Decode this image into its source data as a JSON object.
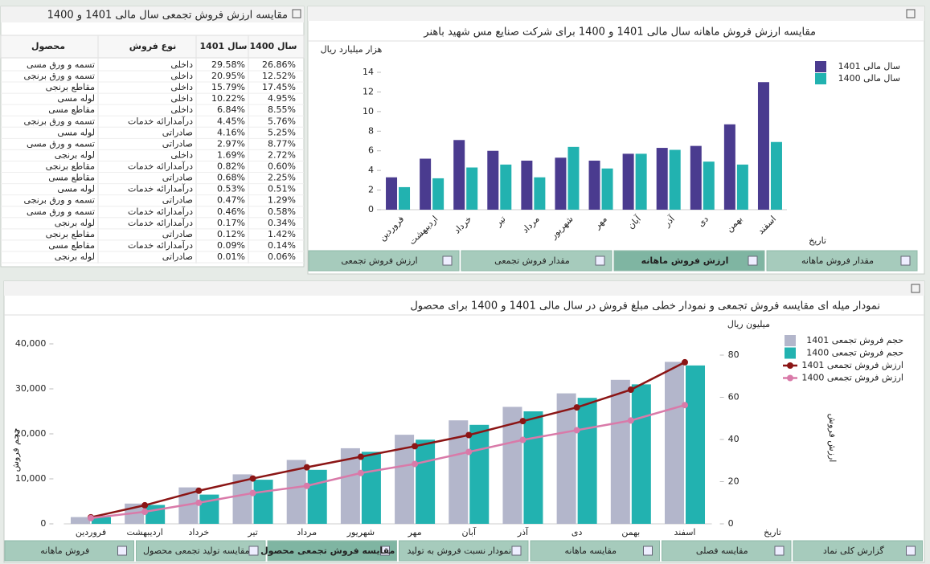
{
  "table": {
    "title": "مقایسه ارزش فروش تجمعی سال مالی 1401 و 1400",
    "columns": [
      "محصول",
      "نوع فروش",
      "سال 1401",
      "سال 1400"
    ],
    "rows": [
      [
        "تسمه و ورق مسی",
        "داخلی",
        "29.58%",
        "26.86%"
      ],
      [
        "تسمه و ورق برنجی",
        "داخلی",
        "20.95%",
        "12.52%"
      ],
      [
        "مقاطع برنجی",
        "داخلی",
        "15.79%",
        "17.45%"
      ],
      [
        "لوله مسی",
        "داخلی",
        "10.22%",
        "4.95%"
      ],
      [
        "مقاطع مسی",
        "داخلی",
        "6.84%",
        "8.55%"
      ],
      [
        "تسمه و ورق برنجی",
        "درآمدارائه خدمات",
        "4.45%",
        "5.76%"
      ],
      [
        "لوله مسی",
        "صادراتی",
        "4.16%",
        "5.25%"
      ],
      [
        "تسمه و ورق مسی",
        "صادراتی",
        "2.97%",
        "8.77%"
      ],
      [
        "لوله برنجی",
        "داخلی",
        "1.69%",
        "2.72%"
      ],
      [
        "مقاطع برنجی",
        "درآمدارائه خدمات",
        "0.82%",
        "0.60%"
      ],
      [
        "مقاطع مسی",
        "صادراتی",
        "0.68%",
        "2.25%"
      ],
      [
        "لوله مسی",
        "درآمدارائه خدمات",
        "0.53%",
        "0.51%"
      ],
      [
        "تسمه و ورق برنجی",
        "صادراتی",
        "0.47%",
        "1.29%"
      ],
      [
        "تسمه و ورق مسی",
        "درآمدارائه خدمات",
        "0.46%",
        "0.58%"
      ],
      [
        "لوله برنجی",
        "درآمدارائه خدمات",
        "0.17%",
        "0.34%"
      ],
      [
        "مقاطع برنجی",
        "صادراتی",
        "0.12%",
        "1.42%"
      ],
      [
        "مقاطع مسی",
        "درآمدارائه خدمات",
        "0.09%",
        "0.14%"
      ],
      [
        "لوله برنجی",
        "صادراتی",
        "0.01%",
        "0.06%"
      ]
    ]
  },
  "chart_data": [
    {
      "type": "bar",
      "title": "مقایسه ارزش فروش ماهانه سال مالی 1401 و 1400 برای شرکت صنایع مس شهید باهنر",
      "y_label": "هزار میلیارد ریال",
      "x_label": "تاریخ",
      "categories": [
        "فروردین",
        "اردیبهشت",
        "خرداد",
        "تیر",
        "مرداد",
        "شهریور",
        "مهر",
        "آبان",
        "آذر",
        "دی",
        "بهمن",
        "اسفند"
      ],
      "series": [
        {
          "name": "سال مالی 1401",
          "color": "#4a3b8f",
          "values": [
            3.3,
            5.2,
            7.1,
            6.0,
            5.0,
            5.3,
            5.0,
            5.7,
            6.3,
            6.5,
            8.7,
            13.0
          ]
        },
        {
          "name": "سال مالی 1400",
          "color": "#22b2b0",
          "values": [
            2.3,
            3.2,
            4.3,
            4.6,
            3.3,
            6.4,
            4.2,
            5.7,
            6.1,
            4.9,
            4.6,
            6.9
          ]
        }
      ],
      "ylim": [
        0,
        16
      ],
      "yticks": [
        0,
        2,
        4,
        6,
        8,
        10,
        12,
        14
      ],
      "grid": false,
      "legend": "top-right"
    },
    {
      "type": "combo",
      "title": "نمودار میله ای مقایسه فروش تجمعی و نمودار خطی مبلغ فروش در سال مالی 1401 و 1400 برای محصول",
      "y_label": "حجم فروش",
      "y2_label": "ارزش فروش",
      "y2_unit": "میلیون ریال",
      "x_label": "تاریخ",
      "categories": [
        "فروردین",
        "اردیبهشت",
        "خرداد",
        "تیر",
        "مرداد",
        "شهریور",
        "مهر",
        "آبان",
        "آذر",
        "دی",
        "بهمن",
        "اسفند"
      ],
      "series": [
        {
          "name": "حجم فروش تجمعی 1401",
          "type": "bar",
          "color": "#b3b6cb",
          "values": [
            1500,
            4500,
            8100,
            11000,
            14200,
            16800,
            19800,
            23000,
            26000,
            29000,
            32000,
            36000
          ]
        },
        {
          "name": "حجم فروش تجمعی 1400",
          "type": "bar",
          "color": "#22b2b0",
          "values": [
            1500,
            4200,
            6500,
            9800,
            12000,
            16000,
            18700,
            22000,
            25000,
            28000,
            31000,
            35200
          ]
        },
        {
          "name": "ارزش فروش تجمعی 1401",
          "type": "line",
          "axis": "y2",
          "color": "#8b1515",
          "values": [
            3.1,
            8.8,
            15.7,
            21.5,
            26.8,
            31.8,
            36.8,
            42.1,
            48.7,
            55.2,
            63.6,
            76.6
          ]
        },
        {
          "name": "ارزش فروش تجمعی 1400",
          "type": "line",
          "axis": "y2",
          "color": "#d97aa9",
          "values": [
            2.7,
            5.7,
            10.0,
            14.6,
            18.0,
            24.1,
            28.4,
            34.1,
            39.8,
            44.4,
            49.0,
            56.3
          ]
        }
      ],
      "ylim": [
        0,
        45000
      ],
      "yticks": [
        0,
        {
          "value": 10000,
          "label": "10,000"
        },
        {
          "value": 20000,
          "label": "20,000"
        },
        {
          "value": 30000,
          "label": "30,000"
        },
        {
          "value": 40000,
          "label": "40,000"
        }
      ],
      "y2lim": [
        0,
        96
      ],
      "y2ticks": [
        0,
        20,
        40,
        60,
        80
      ],
      "grid": false,
      "legend": "top-right"
    }
  ],
  "tabs_top": [
    "ارزش فروش تجمعی",
    "مقدار فروش تجمعی",
    "ارزش فروش ماهانه",
    "مقدار فروش ماهانه"
  ],
  "tabs_bottom": [
    "فروش ماهانه",
    "مقایسه تولید تجمعی محصول",
    "مقایسه فروش تجمعی محصول",
    "نمودار نسبت فروش به تولید",
    "مقایسه ماهانه",
    "مقایسه فصلی",
    "گزارش کلی نماد"
  ]
}
